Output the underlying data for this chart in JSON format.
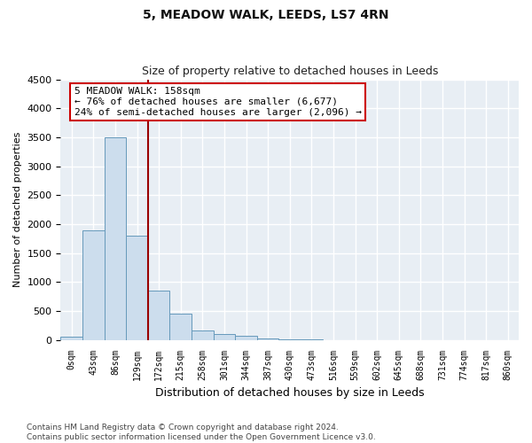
{
  "title": "5, MEADOW WALK, LEEDS, LS7 4RN",
  "subtitle": "Size of property relative to detached houses in Leeds",
  "xlabel": "Distribution of detached houses by size in Leeds",
  "ylabel": "Number of detached properties",
  "bar_color": "#ccdded",
  "bar_edge_color": "#6699bb",
  "background_color": "#e8eef4",
  "grid_color": "#ffffff",
  "categories": [
    "0sqm",
    "43sqm",
    "86sqm",
    "129sqm",
    "172sqm",
    "215sqm",
    "258sqm",
    "301sqm",
    "344sqm",
    "387sqm",
    "430sqm",
    "473sqm",
    "516sqm",
    "559sqm",
    "602sqm",
    "645sqm",
    "688sqm",
    "731sqm",
    "774sqm",
    "817sqm",
    "860sqm"
  ],
  "values": [
    50,
    1900,
    3500,
    1800,
    850,
    450,
    160,
    100,
    65,
    30,
    8,
    4,
    2,
    1,
    1,
    0,
    0,
    0,
    0,
    0,
    0
  ],
  "ylim": [
    0,
    4500
  ],
  "yticks": [
    0,
    500,
    1000,
    1500,
    2000,
    2500,
    3000,
    3500,
    4000,
    4500
  ],
  "property_line_x": 3.5,
  "annotation_text": "5 MEADOW WALK: 158sqm\n← 76% of detached houses are smaller (6,677)\n24% of semi-detached houses are larger (2,096) →",
  "annotation_box_color": "#ffffff",
  "annotation_box_edge": "#cc0000",
  "line_color": "#990000",
  "footer": "Contains HM Land Registry data © Crown copyright and database right 2024.\nContains public sector information licensed under the Open Government Licence v3.0.",
  "figsize": [
    6.0,
    5.0
  ],
  "dpi": 100
}
